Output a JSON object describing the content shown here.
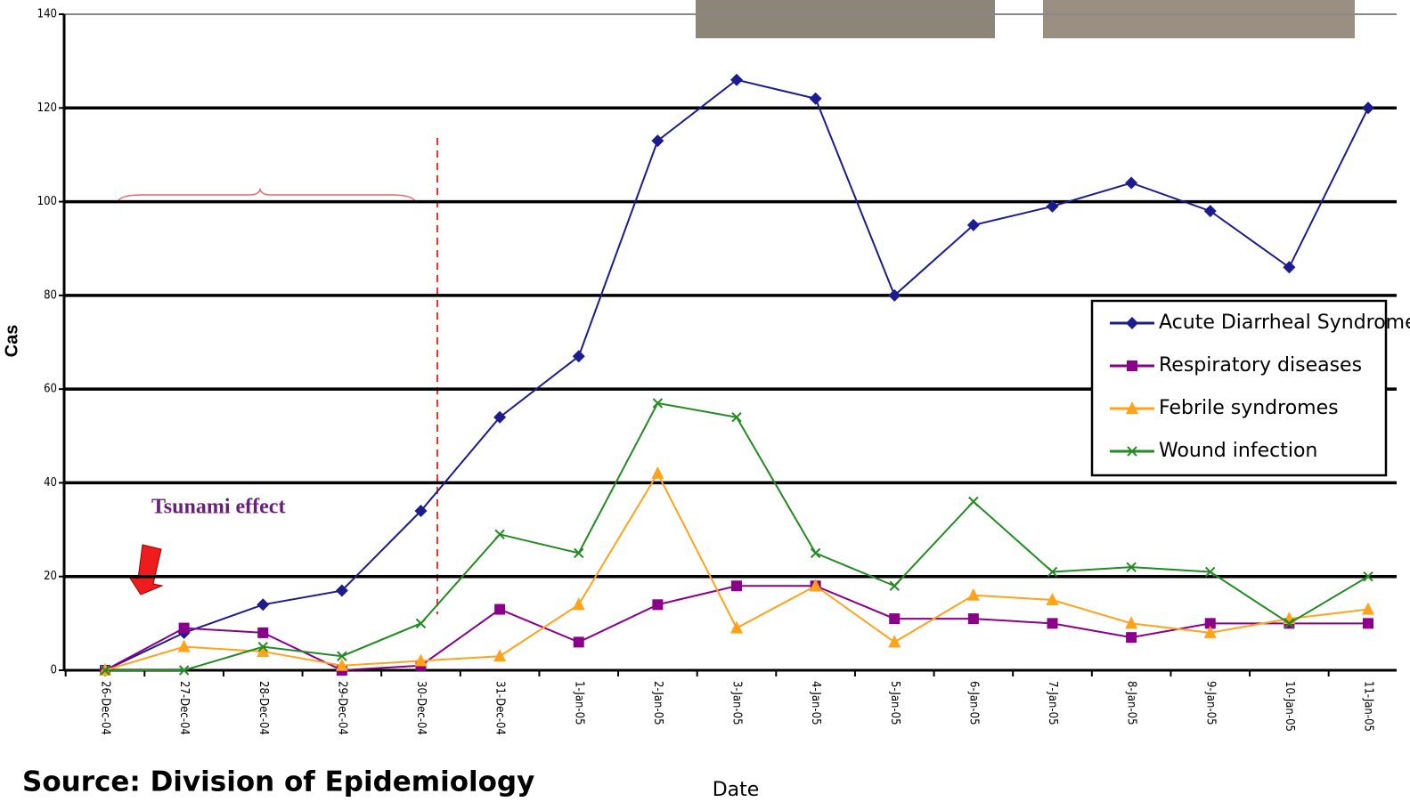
{
  "chart_data": {
    "type": "line",
    "x_label": "Date",
    "y_label": "Cas",
    "annotations": [
      "Tsunami effect",
      "Source:  Division of Epidemiology"
    ],
    "categories": [
      "26-Dec-04",
      "27-Dec-04",
      "28-Dec-04",
      "29-Dec-04",
      "30-Dec-04",
      "31-Dec-04",
      "1-Jan-05",
      "2-Jan-05",
      "3-Jan-05",
      "4-Jan-05",
      "5-Jan-05",
      "6-Jan-05",
      "7-Jan-05",
      "8-Jan-05",
      "9-Jan-05",
      "10-Jan-05",
      "11-Jan-05"
    ],
    "series": [
      {
        "name": "Acute Diarrheal Syndromes",
        "color": "#1c1c8e",
        "marker": "diamond",
        "values": [
          0,
          8,
          14,
          17,
          34,
          54,
          67,
          113,
          126,
          122,
          80,
          95,
          99,
          104,
          98,
          86,
          120
        ]
      },
      {
        "name": "Respiratory diseases",
        "color": "#8b008b",
        "marker": "square",
        "values": [
          0,
          9,
          8,
          0,
          1,
          13,
          6,
          14,
          18,
          18,
          11,
          11,
          10,
          7,
          10,
          10,
          10
        ]
      },
      {
        "name": "Febrile syndromes",
        "color": "#ffa31a",
        "marker": "triangle",
        "values": [
          0,
          5,
          4,
          1,
          2,
          3,
          14,
          42,
          9,
          18,
          6,
          16,
          15,
          10,
          8,
          11,
          13
        ]
      },
      {
        "name": "Wound infection",
        "color": "#228b22",
        "marker": "x",
        "values": [
          0,
          0,
          5,
          3,
          10,
          29,
          25,
          57,
          54,
          25,
          18,
          36,
          21,
          22,
          21,
          10,
          20
        ]
      }
    ],
    "ylim": [
      0,
      140
    ],
    "yticks": [
      0,
      20,
      40,
      60,
      80,
      100,
      120,
      140
    ],
    "grid": true
  }
}
